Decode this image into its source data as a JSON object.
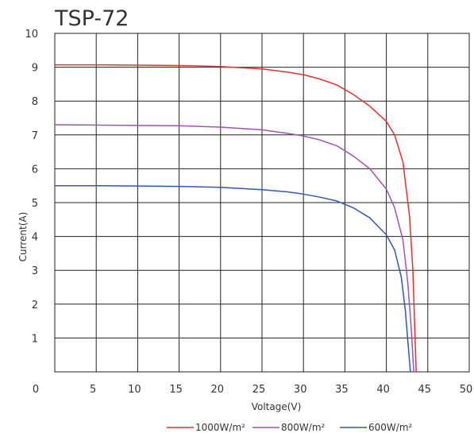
{
  "chart_data": {
    "type": "line",
    "title": "TSP-72",
    "xlabel": "Voltage(V)",
    "ylabel": "Current(A)",
    "xlim": [
      0,
      50
    ],
    "ylim": [
      0,
      10
    ],
    "xticks": [
      0,
      5,
      10,
      15,
      20,
      25,
      30,
      35,
      40,
      45,
      50
    ],
    "yticks": [
      1,
      2,
      3,
      4,
      5,
      6,
      7,
      8,
      9,
      10
    ],
    "grid": true,
    "legend_position": "bottom",
    "series": [
      {
        "name": "1000W/m²",
        "color": "#e8302a",
        "points": [
          [
            0,
            9.07
          ],
          [
            5,
            9.07
          ],
          [
            10,
            9.06
          ],
          [
            15,
            9.05
          ],
          [
            20,
            9.02
          ],
          [
            25,
            8.95
          ],
          [
            28,
            8.86
          ],
          [
            30,
            8.78
          ],
          [
            32,
            8.65
          ],
          [
            34,
            8.48
          ],
          [
            36,
            8.2
          ],
          [
            38,
            7.85
          ],
          [
            40,
            7.4
          ],
          [
            41,
            7.0
          ],
          [
            42,
            6.2
          ],
          [
            42.8,
            4.6
          ],
          [
            43.2,
            3.0
          ],
          [
            43.4,
            1.5
          ],
          [
            43.6,
            0
          ]
        ]
      },
      {
        "name": "800W/m²",
        "color": "#a350b8",
        "points": [
          [
            0,
            7.3
          ],
          [
            5,
            7.29
          ],
          [
            10,
            7.28
          ],
          [
            15,
            7.27
          ],
          [
            20,
            7.23
          ],
          [
            25,
            7.15
          ],
          [
            28,
            7.05
          ],
          [
            30,
            6.97
          ],
          [
            32,
            6.85
          ],
          [
            34,
            6.68
          ],
          [
            36,
            6.38
          ],
          [
            38,
            6.0
          ],
          [
            40,
            5.4
          ],
          [
            41,
            4.85
          ],
          [
            42,
            3.9
          ],
          [
            42.6,
            2.6
          ],
          [
            43.0,
            1.3
          ],
          [
            43.3,
            0
          ]
        ]
      },
      {
        "name": "600W/m²",
        "color": "#2e58b8",
        "points": [
          [
            0,
            5.5
          ],
          [
            5,
            5.5
          ],
          [
            10,
            5.49
          ],
          [
            15,
            5.48
          ],
          [
            20,
            5.45
          ],
          [
            25,
            5.38
          ],
          [
            28,
            5.32
          ],
          [
            30,
            5.25
          ],
          [
            32,
            5.16
          ],
          [
            34,
            5.05
          ],
          [
            36,
            4.85
          ],
          [
            38,
            4.55
          ],
          [
            40,
            4.05
          ],
          [
            41,
            3.6
          ],
          [
            41.8,
            2.8
          ],
          [
            42.3,
            1.8
          ],
          [
            42.6,
            0.9
          ],
          [
            42.9,
            0
          ]
        ]
      }
    ]
  }
}
